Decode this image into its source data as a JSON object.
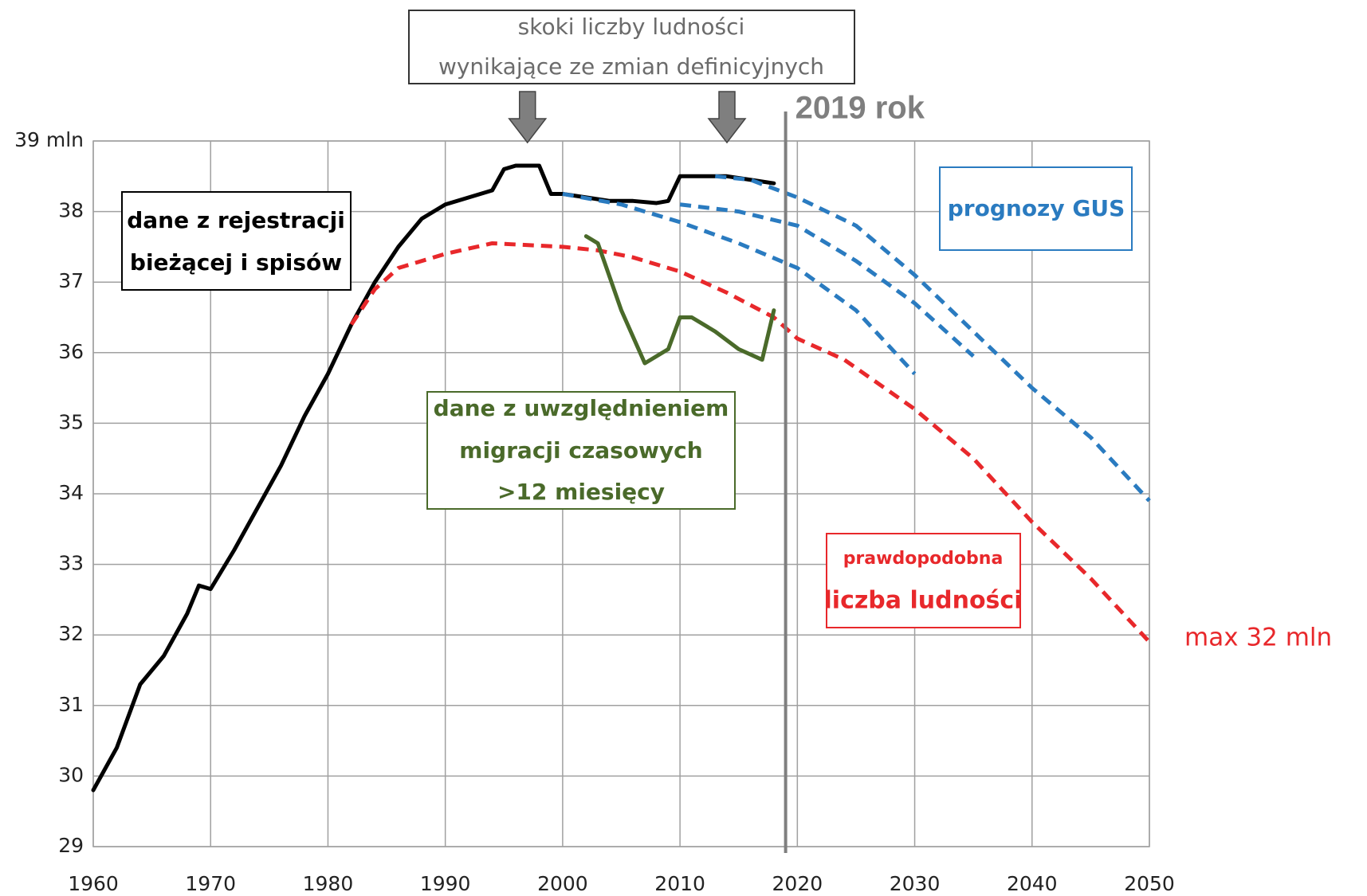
{
  "chart_data": {
    "type": "line",
    "xlim": [
      1960,
      2050
    ],
    "xticks": [
      1960,
      1970,
      1980,
      1990,
      2000,
      2010,
      2020,
      2030,
      2040,
      2050
    ],
    "ylim": [
      29,
      39
    ],
    "yticks": [
      29,
      30,
      31,
      32,
      33,
      34,
      35,
      36,
      37,
      38,
      {
        "value": 39,
        "label": "39 mln"
      }
    ],
    "grid": true,
    "marker_line": {
      "x": 2019,
      "label": "2019 rok",
      "color": "#7f7f7f"
    },
    "series": [
      {
        "color": "#000000",
        "dashed": false,
        "x": [
          1960,
          1962,
          1964,
          1966,
          1968,
          1969,
          1970,
          1972,
          1974,
          1976,
          1978,
          1980,
          1982,
          1984,
          1986,
          1988,
          1990,
          1992,
          1994,
          1995,
          1996,
          1998,
          1999,
          2000,
          2002,
          2004,
          2006,
          2008,
          2009,
          2010,
          2012,
          2014,
          2016,
          2018
        ],
        "values": [
          29.8,
          30.4,
          31.3,
          31.7,
          32.3,
          32.7,
          32.65,
          33.2,
          33.8,
          34.4,
          35.1,
          35.7,
          36.4,
          37.0,
          37.5,
          37.9,
          38.1,
          38.2,
          38.3,
          38.6,
          38.65,
          38.65,
          38.25,
          38.25,
          38.2,
          38.15,
          38.15,
          38.12,
          38.15,
          38.5,
          38.5,
          38.5,
          38.45,
          38.4
        ]
      },
      {
        "color": "#e8282b",
        "dashed": true,
        "x": [
          1982,
          1984,
          1986,
          1990,
          1994,
          2000,
          2003,
          2006,
          2010,
          2014,
          2018,
          2020,
          2024,
          2030,
          2035,
          2040,
          2045,
          2050
        ],
        "values": [
          36.4,
          36.9,
          37.2,
          37.4,
          37.55,
          37.5,
          37.45,
          37.35,
          37.15,
          36.85,
          36.5,
          36.2,
          35.9,
          35.2,
          34.5,
          33.6,
          32.8,
          31.9
        ]
      },
      {
        "color": "#4a6a2a",
        "dashed": false,
        "x": [
          2002,
          2003,
          2005,
          2007,
          2009,
          2010,
          2011,
          2013,
          2015,
          2017,
          2018
        ],
        "values": [
          37.65,
          37.55,
          36.6,
          35.85,
          36.05,
          36.5,
          36.5,
          36.3,
          36.05,
          35.9,
          36.6
        ]
      },
      {
        "color": "#2a7bc0",
        "dashed": true,
        "x": [
          2013,
          2016,
          2020,
          2025,
          2030,
          2035,
          2040,
          2045,
          2050
        ],
        "values": [
          38.5,
          38.45,
          38.2,
          37.8,
          37.1,
          36.3,
          35.5,
          34.8,
          33.9
        ]
      },
      {
        "color": "#2a7bc0",
        "dashed": true,
        "x": [
          2010,
          2015,
          2020,
          2025,
          2030,
          2035
        ],
        "values": [
          38.1,
          38.0,
          37.8,
          37.3,
          36.7,
          35.95
        ]
      },
      {
        "color": "#2a7bc0",
        "dashed": true,
        "x": [
          2000,
          2005,
          2010,
          2015,
          2020,
          2025,
          2030
        ],
        "values": [
          38.25,
          38.1,
          37.85,
          37.55,
          37.2,
          36.6,
          35.7
        ]
      }
    ],
    "annotations": [
      {
        "lines": [
          "skoki liczby ludności",
          "wynikające ze zmian definicyjnych"
        ],
        "color": "#6b6b6b"
      },
      {
        "lines": [
          "dane z rejestracji",
          "bieżącej i spisów"
        ],
        "color": "#000000"
      },
      {
        "lines": [
          "prognozy GUS"
        ],
        "color": "#2a7bc0"
      },
      {
        "lines": [
          "dane z uwzględnieniem",
          "migracji czasowych",
          ">12 miesięcy"
        ],
        "color": "#4a6a2a"
      },
      {
        "lines": [
          "prawdopodobna",
          "liczba ludności"
        ],
        "color": "#e8282b"
      },
      {
        "lines": [
          "max 32 mln"
        ],
        "color": "#e8282b"
      }
    ]
  }
}
